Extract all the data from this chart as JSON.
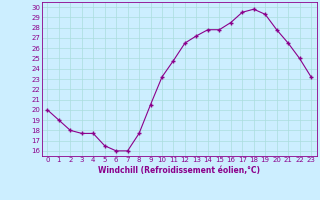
{
  "x": [
    0,
    1,
    2,
    3,
    4,
    5,
    6,
    7,
    8,
    9,
    10,
    11,
    12,
    13,
    14,
    15,
    16,
    17,
    18,
    19,
    20,
    21,
    22,
    23
  ],
  "y": [
    20,
    19,
    18,
    17.7,
    17.7,
    16.5,
    16,
    16,
    17.7,
    20.5,
    23.2,
    24.8,
    26.5,
    27.2,
    27.8,
    27.8,
    28.5,
    29.5,
    29.8,
    29.3,
    27.8,
    26.5,
    25.0,
    23.2
  ],
  "line_color": "#8B008B",
  "marker": "+",
  "marker_size": 3.5,
  "marker_lw": 1.0,
  "line_width": 0.8,
  "bg_color": "#cceeff",
  "grid_color": "#aadddd",
  "xlabel": "Windchill (Refroidissement éolien,°C)",
  "ylabel_ticks": [
    16,
    17,
    18,
    19,
    20,
    21,
    22,
    23,
    24,
    25,
    26,
    27,
    28,
    29,
    30
  ],
  "xlim": [
    -0.5,
    23.5
  ],
  "ylim": [
    15.5,
    30.5
  ],
  "xticks": [
    0,
    1,
    2,
    3,
    4,
    5,
    6,
    7,
    8,
    9,
    10,
    11,
    12,
    13,
    14,
    15,
    16,
    17,
    18,
    19,
    20,
    21,
    22,
    23
  ],
  "tick_fontsize": 5.0,
  "xlabel_fontsize": 5.5
}
